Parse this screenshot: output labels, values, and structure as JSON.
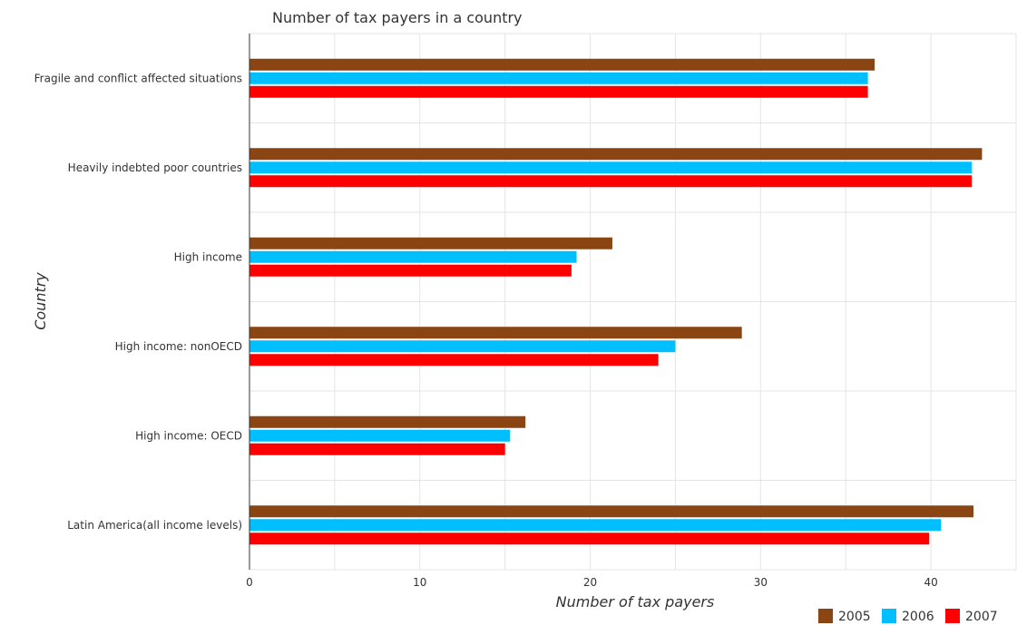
{
  "chart_data": {
    "type": "bar",
    "orientation": "horizontal",
    "title": "Number of tax payers in a country",
    "xlabel": "Number of tax payers",
    "ylabel": "Country",
    "categories": [
      "Fragile and conflict affected situations",
      "Heavily indebted poor countries",
      "High income",
      "High income: nonOECD",
      "High income: OECD",
      "Latin America(all income levels)"
    ],
    "series": [
      {
        "name": "2005",
        "color": "#8B4513",
        "values": [
          36.7,
          43.0,
          21.3,
          28.9,
          16.2,
          42.5
        ]
      },
      {
        "name": "2006",
        "color": "#00BFFF",
        "values": [
          36.3,
          42.4,
          19.2,
          25.0,
          15.3,
          40.6
        ]
      },
      {
        "name": "2007",
        "color": "#FF0000",
        "values": [
          36.3,
          42.4,
          18.9,
          24.0,
          15.0,
          39.9
        ]
      }
    ],
    "xlim": [
      0,
      45
    ],
    "xticks": [
      0,
      10,
      20,
      30,
      40
    ],
    "grid": true,
    "legend_position": "bottom-right"
  }
}
